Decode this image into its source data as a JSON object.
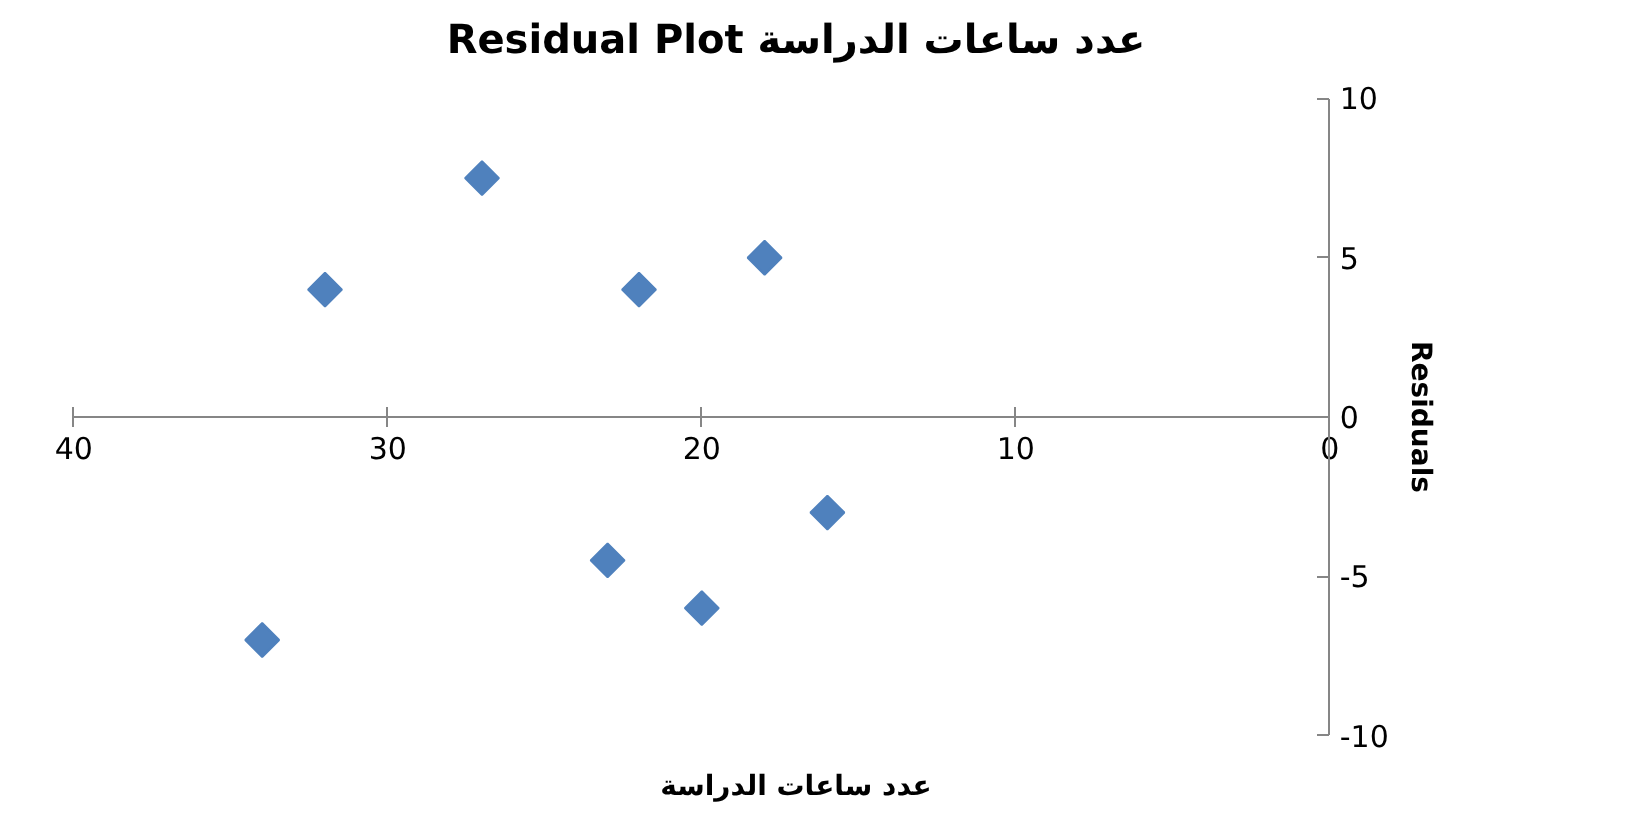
{
  "chart_data": {
    "type": "scatter",
    "title": "Residual Plot عدد ساعات الدراسة",
    "xlabel": "عدد ساعات الدراسة",
    "ylabel": "Residuals",
    "x": [
      34,
      32,
      27,
      23,
      22,
      20,
      18,
      16
    ],
    "series": [
      {
        "color": "#4f81bd",
        "values": [
          -7,
          4,
          7.5,
          -4.5,
          4,
          -6,
          5,
          -3
        ]
      }
    ],
    "xlim": [
      40,
      0
    ],
    "xticks": [
      40,
      30,
      20,
      10,
      0
    ],
    "ylim": [
      -10,
      10
    ],
    "yticks": [
      -10,
      -5,
      0,
      5,
      10
    ],
    "marker": "diamond",
    "grid": false
  }
}
